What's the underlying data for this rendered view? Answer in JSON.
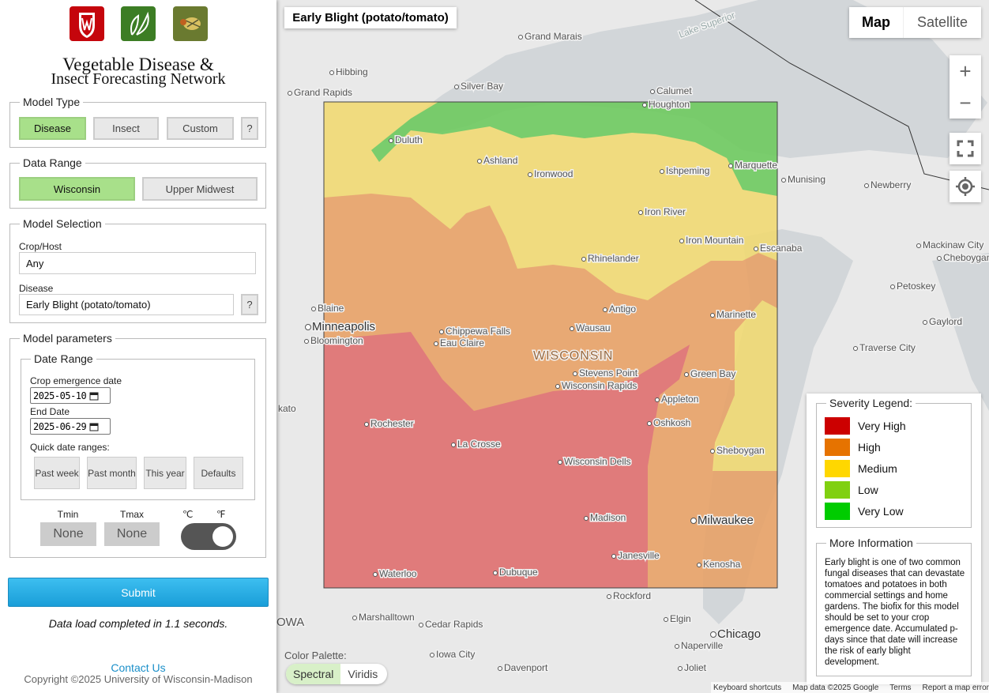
{
  "sidebar": {
    "title_line1": "Vegetable Disease &",
    "title_line2": "Insect Forecasting Network",
    "model_type": {
      "legend": "Model Type",
      "buttons": [
        "Disease",
        "Insect",
        "Custom"
      ],
      "help": "?"
    },
    "data_range": {
      "legend": "Data Range",
      "buttons": [
        "Wisconsin",
        "Upper Midwest"
      ]
    },
    "model_selection": {
      "legend": "Model Selection",
      "crop_label": "Crop/Host",
      "crop_value": "Any",
      "disease_label": "Disease",
      "disease_value": "Early Blight (potato/tomato)",
      "help": "?"
    },
    "model_parameters": {
      "legend": "Model parameters",
      "date_range": {
        "legend": "Date Range",
        "start_label": "Crop emergence date",
        "start_value": "2025-05-10",
        "end_label": "End Date",
        "end_value": "2025-06-29",
        "quick_label": "Quick date ranges:",
        "quick_buttons": [
          "Past week",
          "Past month",
          "This year",
          "Defaults"
        ]
      },
      "tmin_label": "Tmin",
      "tmin_value": "None",
      "tmax_label": "Tmax",
      "tmax_value": "None",
      "unit_c": "℃",
      "unit_f": "℉"
    },
    "submit": "Submit",
    "status": "Data load completed in 1.1 seconds.",
    "contact": "Contact Us",
    "copyright": "Copyright ©2025 University of Wisconsin-Madison"
  },
  "map": {
    "title": "Early Blight (potato/tomato)",
    "map_button": "Map",
    "satellite_button": "Satellite",
    "zoom_in": "+",
    "zoom_out": "−",
    "region_label": "WISCONSIN",
    "lake_label": "Lake Superior",
    "state_label": "OWA",
    "edge_label": "kato",
    "cities": [
      "Grand Marais",
      "Hibbing",
      "Silver Bay",
      "Grand Rapids",
      "Calumet",
      "Houghton",
      "Duluth",
      "Ashland",
      "Ironwood",
      "Ishpeming",
      "Marquette",
      "Munising",
      "Newberry",
      "Iron River",
      "Iron Mountain",
      "Rhinelander",
      "Escanaba",
      "Mackinaw City",
      "Cheboygan",
      "Petoskey",
      "Blaine",
      "Minneapolis",
      "Bloomington",
      "Antigo",
      "Marinette",
      "Gaylord",
      "Chippewa Falls",
      "Wausau",
      "Eau Claire",
      "Traverse City",
      "Stevens Point",
      "Green Bay",
      "Wisconsin Rapids",
      "Appleton",
      "Rochester",
      "Oshkosh",
      "La Crosse",
      "Sheboygan",
      "Wisconsin Dells",
      "Madison",
      "Milwaukee",
      "Janesville",
      "Kenosha",
      "Waterloo",
      "Dubuque",
      "Rockford",
      "Marshalltown",
      "Cedar Rapids",
      "Elgin",
      "Chicago",
      "Naperville",
      "Iowa City",
      "Davenport",
      "Joliet"
    ],
    "legend": {
      "title": "Severity Legend:",
      "items": [
        {
          "label": "Very High",
          "color": "#cc0000"
        },
        {
          "label": "High",
          "color": "#e67300"
        },
        {
          "label": "Medium",
          "color": "#ffd700"
        },
        {
          "label": "Low",
          "color": "#80d010"
        },
        {
          "label": "Very Low",
          "color": "#00cc00"
        }
      ]
    },
    "info": {
      "title": "More Information",
      "text": "Early blight is one of two common fungal diseases that can devastate tomatoes and potatoes in both commercial settings and home gardens. The biofix for this model should be set to your crop emergence date. Accumulated p-days since that date will increase the risk of early blight development."
    },
    "color_palette": {
      "label": "Color Palette:",
      "options": [
        "Spectral",
        "Viridis"
      ]
    },
    "footer": [
      "Keyboard shortcuts",
      "Map data ©2025 Google",
      "Terms",
      "Report a map error"
    ]
  }
}
